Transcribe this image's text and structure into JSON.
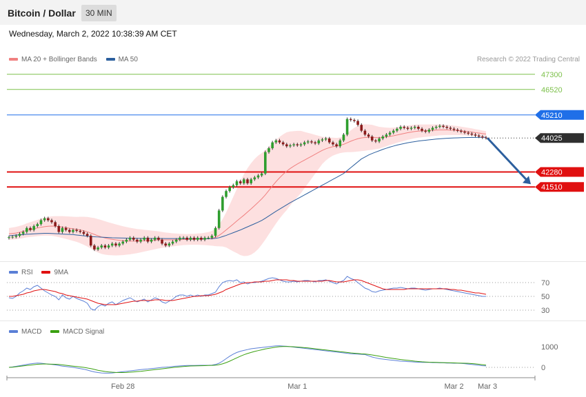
{
  "header": {
    "title": "Bitcoin / Dollar",
    "timeframe": "30 MIN"
  },
  "datetime": "Wednesday, March 2, 2022 10:38:39 AM CET",
  "credit": "Research © 2022 Trading Central",
  "legend": {
    "price": [
      {
        "label": "MA 20 + Bollinger Bands",
        "color": "#f08080"
      },
      {
        "label": "MA 50",
        "color": "#2c5f9e"
      }
    ],
    "rsi": [
      {
        "label": "RSI",
        "color": "#5a7fd6"
      },
      {
        "label": "9MA",
        "color": "#e01010"
      }
    ],
    "macd": [
      {
        "label": "MACD",
        "color": "#5a7fd6"
      },
      {
        "label": "MACD Signal",
        "color": "#3aa010"
      }
    ]
  },
  "chart_data": [
    {
      "type": "candlestick",
      "panel": "price",
      "instrument": "Bitcoin / Dollar",
      "interval": "30 MIN",
      "ylim": [
        37800,
        48000
      ],
      "x_ticks": [
        "Feb 28",
        "Mar 1",
        "Mar 2",
        "Mar 3"
      ],
      "last_price": 44025,
      "levels": [
        {
          "value": 47300,
          "label": "47300",
          "color": "#7cc04a",
          "style": "thin"
        },
        {
          "value": 46520,
          "label": "46520",
          "color": "#7cc04a",
          "style": "thin"
        },
        {
          "value": 45210,
          "label": "45210",
          "color": "#1f6fe8",
          "style": "thin"
        },
        {
          "value": 44025,
          "label": "44025",
          "color": "#2f2f2f",
          "style": "dotted"
        },
        {
          "value": 42280,
          "label": "42280",
          "color": "#e01010",
          "style": "bold"
        },
        {
          "value": 41510,
          "label": "41510",
          "color": "#e01010",
          "style": "bold"
        }
      ],
      "forecast_arrow": {
        "from": 44025,
        "to": 41510,
        "color": "#2c5f9e"
      },
      "close": [
        38930,
        38950,
        39000,
        39100,
        39200,
        39400,
        39300,
        39500,
        39600,
        39800,
        39900,
        39800,
        39700,
        39500,
        39200,
        39400,
        39300,
        39200,
        39300,
        39250,
        39200,
        39100,
        39000,
        38500,
        38300,
        38400,
        38500,
        38400,
        38500,
        38600,
        38500,
        38600,
        38700,
        38800,
        38900,
        38800,
        38700,
        38800,
        38900,
        38700,
        38800,
        38900,
        38800,
        38600,
        38500,
        38600,
        38700,
        38800,
        38900,
        38900,
        38800,
        38900,
        38800,
        38900,
        38800,
        38900,
        38900,
        39000,
        39400,
        40300,
        41000,
        41300,
        41500,
        41600,
        41800,
        41700,
        41900,
        41700,
        41900,
        42000,
        42100,
        42200,
        43300,
        43500,
        43800,
        43900,
        43800,
        43700,
        43600,
        43650,
        43700,
        43650,
        43700,
        43800,
        43850,
        43800,
        43750,
        43900,
        43950,
        44000,
        43800,
        43700,
        43600,
        43900,
        44200,
        45000,
        44950,
        44900,
        44700,
        44400,
        44200,
        44100,
        43900,
        43850,
        44000,
        44100,
        44200,
        44300,
        44400,
        44500,
        44600,
        44550,
        44500,
        44550,
        44600,
        44500,
        44400,
        44350,
        44450,
        44550,
        44600,
        44650,
        44600,
        44550,
        44500,
        44450,
        44400,
        44350,
        44300,
        44250,
        44200,
        44150,
        44100,
        44050,
        44025
      ],
      "ma50": [
        39000,
        39020,
        39040,
        39050,
        39060,
        39080,
        39090,
        39100,
        39110,
        39120,
        39130,
        39130,
        39120,
        39110,
        39100,
        39090,
        39080,
        39070,
        39060,
        39040,
        39020,
        39000,
        38980,
        38960,
        38950,
        38940,
        38930,
        38920,
        38910,
        38900,
        38895,
        38890,
        38885,
        38880,
        38875,
        38872,
        38870,
        38868,
        38866,
        38865,
        38864,
        38863,
        38862,
        38861,
        38860,
        38859,
        38858,
        38857,
        38856,
        38855,
        38854,
        38853,
        38852,
        38851,
        38850,
        38850,
        38850,
        38855,
        38870,
        38900,
        38960,
        39020,
        39090,
        39160,
        39230,
        39300,
        39380,
        39460,
        39540,
        39620,
        39700,
        39790,
        39900,
        40020,
        40140,
        40260,
        40370,
        40480,
        40590,
        40700,
        40800,
        40900,
        41000,
        41100,
        41200,
        41300,
        41400,
        41500,
        41600,
        41700,
        41800,
        41900,
        42000,
        42100,
        42200,
        42350,
        42500,
        42650,
        42800,
        42950,
        43050,
        43150,
        43230,
        43300,
        43370,
        43440,
        43500,
        43560,
        43610,
        43660,
        43700,
        43740,
        43780,
        43810,
        43840,
        43870,
        43890,
        43910,
        43930,
        43950,
        43970,
        43985,
        44000,
        44010,
        44020,
        44030,
        44035,
        44040,
        44045,
        44050,
        44052,
        44054,
        44056,
        44058,
        44060
      ],
      "ma20": [
        39100,
        39120,
        39140,
        39180,
        39220,
        39280,
        39320,
        39360,
        39400,
        39440,
        39470,
        39490,
        39500,
        39490,
        39470,
        39450,
        39420,
        39390,
        39360,
        39330,
        39300,
        39260,
        39210,
        39140,
        39070,
        39000,
        38940,
        38890,
        38850,
        38820,
        38790,
        38770,
        38750,
        38740,
        38730,
        38730,
        38730,
        38740,
        38750,
        38760,
        38770,
        38780,
        38790,
        38790,
        38790,
        38790,
        38790,
        38800,
        38800,
        38810,
        38810,
        38820,
        38820,
        38830,
        38830,
        38840,
        38850,
        38870,
        38920,
        39020,
        39150,
        39300,
        39450,
        39600,
        39760,
        39910,
        40060,
        40220,
        40380,
        40550,
        40720,
        40900,
        41100,
        41330,
        41560,
        41780,
        41980,
        42160,
        42320,
        42460,
        42580,
        42690,
        42790,
        42890,
        42990,
        43090,
        43190,
        43290,
        43390,
        43470,
        43530,
        43580,
        43610,
        43650,
        43700,
        43780,
        43860,
        43930,
        43990,
        44030,
        44050,
        44060,
        44060,
        44050,
        44040,
        44060,
        44080,
        44110,
        44140,
        44180,
        44220,
        44260,
        44300,
        44330,
        44360,
        44380,
        44390,
        44400,
        44410,
        44420,
        44430,
        44440,
        44440,
        44440,
        44430,
        44420,
        44410,
        44390,
        44370,
        44350,
        44330,
        44300,
        44280,
        44250,
        44230
      ],
      "bb_width": [
        300,
        310,
        320,
        330,
        340,
        360,
        380,
        400,
        420,
        440,
        460,
        480,
        500,
        520,
        540,
        560,
        580,
        600,
        620,
        640,
        680,
        720,
        760,
        800,
        840,
        860,
        870,
        860,
        840,
        820,
        800,
        770,
        740,
        710,
        680,
        650,
        620,
        590,
        560,
        530,
        500,
        470,
        440,
        410,
        380,
        360,
        340,
        320,
        300,
        290,
        280,
        280,
        280,
        290,
        300,
        320,
        340,
        380,
        450,
        560,
        700,
        900,
        1150,
        1400,
        1650,
        1900,
        2100,
        2250,
        2350,
        2400,
        2400,
        2350,
        2300,
        2250,
        2200,
        2150,
        2100,
        2050,
        2000,
        1900,
        1800,
        1700,
        1600,
        1450,
        1300,
        1150,
        1000,
        850,
        700,
        600,
        520,
        460,
        420,
        400,
        420,
        480,
        560,
        620,
        660,
        680,
        680,
        660,
        640,
        600,
        560,
        520,
        480,
        440,
        420,
        400,
        390,
        380,
        370,
        360,
        350,
        340,
        330,
        320,
        310,
        300,
        290,
        280,
        270,
        260,
        250,
        240,
        230,
        220,
        210,
        200,
        190,
        180,
        170,
        160,
        150
      ]
    },
    {
      "type": "line",
      "panel": "rsi",
      "ylim": [
        20,
        85
      ],
      "ticks": [
        30,
        50,
        70
      ],
      "series": [
        {
          "name": "RSI",
          "color": "#5a7fd6",
          "values": [
            48,
            47,
            50,
            55,
            58,
            62,
            60,
            64,
            66,
            62,
            58,
            55,
            52,
            50,
            45,
            52,
            48,
            46,
            50,
            47,
            45,
            43,
            40,
            32,
            30,
            35,
            38,
            36,
            40,
            42,
            38,
            41,
            44,
            46,
            48,
            45,
            42,
            44,
            46,
            42,
            45,
            48,
            46,
            42,
            40,
            43,
            46,
            50,
            52,
            52,
            50,
            52,
            50,
            52,
            50,
            52,
            52,
            54,
            56,
            64,
            70,
            72,
            73,
            72,
            74,
            70,
            71,
            68,
            70,
            70,
            71,
            72,
            74,
            76,
            77,
            76,
            74,
            72,
            71,
            71,
            72,
            71,
            72,
            73,
            73,
            72,
            71,
            73,
            73,
            74,
            72,
            70,
            68,
            71,
            73,
            79,
            76,
            74,
            70,
            66,
            62,
            60,
            57,
            56,
            58,
            59,
            60,
            61,
            62,
            62,
            63,
            62,
            61,
            62,
            62,
            61,
            60,
            59,
            60,
            61,
            61,
            62,
            61,
            60,
            59,
            58,
            57,
            56,
            55,
            54,
            53,
            52,
            51,
            50,
            50
          ]
        },
        {
          "name": "9MA",
          "color": "#e01010",
          "values": [
            50,
            50,
            51,
            52,
            53,
            55,
            56,
            58,
            59,
            60,
            60,
            59,
            58,
            57,
            55,
            54,
            52,
            51,
            50,
            49,
            48,
            47,
            46,
            44,
            42,
            40,
            39,
            38,
            38,
            38,
            38,
            39,
            40,
            41,
            42,
            43,
            43,
            44,
            44,
            44,
            44,
            45,
            45,
            45,
            44,
            44,
            44,
            45,
            46,
            47,
            48,
            49,
            50,
            50,
            51,
            51,
            51,
            52,
            53,
            55,
            57,
            60,
            62,
            64,
            66,
            68,
            69,
            70,
            70,
            71,
            71,
            71,
            72,
            72,
            73,
            74,
            74,
            74,
            74,
            73,
            73,
            72,
            72,
            72,
            72,
            72,
            72,
            72,
            72,
            73,
            73,
            72,
            71,
            71,
            71,
            72,
            73,
            74,
            74,
            73,
            71,
            69,
            67,
            65,
            63,
            61,
            60,
            60,
            60,
            60,
            60,
            60,
            61,
            61,
            61,
            61,
            61,
            61,
            61,
            61,
            61,
            61,
            61,
            61,
            60,
            60,
            59,
            59,
            58,
            57,
            56,
            55,
            55,
            54,
            53
          ]
        }
      ]
    },
    {
      "type": "line",
      "panel": "macd",
      "ylim": [
        -400,
        1500
      ],
      "ticks": [
        0,
        1000
      ],
      "series": [
        {
          "name": "MACD",
          "color": "#5a7fd6",
          "values": [
            0,
            20,
            50,
            80,
            110,
            140,
            170,
            190,
            210,
            200,
            180,
            160,
            140,
            120,
            90,
            60,
            40,
            20,
            0,
            -30,
            -60,
            -90,
            -130,
            -180,
            -220,
            -250,
            -270,
            -280,
            -280,
            -270,
            -250,
            -230,
            -210,
            -190,
            -170,
            -150,
            -130,
            -110,
            -90,
            -80,
            -60,
            -40,
            -20,
            0,
            10,
            20,
            40,
            60,
            70,
            80,
            90,
            90,
            90,
            95,
            100,
            100,
            100,
            110,
            140,
            200,
            300,
            420,
            540,
            640,
            720,
            780,
            820,
            860,
            900,
            920,
            940,
            960,
            980,
            1000,
            1020,
            1040,
            1040,
            1030,
            1020,
            1000,
            980,
            960,
            940,
            920,
            900,
            880,
            860,
            840,
            820,
            800,
            780,
            760,
            740,
            720,
            700,
            680,
            660,
            650,
            640,
            630,
            620,
            560,
            500,
            460,
            420,
            400,
            380,
            360,
            340,
            320,
            300,
            290,
            280,
            270,
            260,
            250,
            240,
            240,
            240,
            230,
            230,
            220,
            220,
            210,
            210,
            200,
            200,
            190,
            180,
            160,
            140,
            120,
            100,
            80,
            70
          ]
        },
        {
          "name": "MACD Signal",
          "color": "#3aa010",
          "values": [
            0,
            10,
            30,
            50,
            70,
            90,
            110,
            130,
            150,
            160,
            165,
            160,
            155,
            150,
            140,
            120,
            100,
            80,
            60,
            40,
            20,
            0,
            -30,
            -60,
            -100,
            -140,
            -170,
            -200,
            -220,
            -235,
            -245,
            -250,
            -250,
            -245,
            -235,
            -220,
            -205,
            -190,
            -170,
            -150,
            -130,
            -110,
            -90,
            -70,
            -50,
            -30,
            -10,
            10,
            25,
            40,
            55,
            65,
            70,
            75,
            80,
            85,
            90,
            95,
            105,
            130,
            170,
            230,
            300,
            380,
            460,
            540,
            610,
            670,
            720,
            770,
            810,
            850,
            890,
            920,
            950,
            980,
            1000,
            1010,
            1010,
            1005,
            995,
            985,
            970,
            955,
            940,
            920,
            900,
            880,
            860,
            840,
            820,
            800,
            780,
            760,
            740,
            720,
            700,
            685,
            670,
            655,
            645,
            625,
            600,
            570,
            540,
            510,
            480,
            455,
            430,
            405,
            380,
            360,
            340,
            320,
            300,
            285,
            270,
            260,
            250,
            245,
            240,
            235,
            230,
            225,
            220,
            215,
            210,
            205,
            200,
            195,
            185,
            170,
            150,
            130,
            110
          ]
        }
      ]
    }
  ]
}
